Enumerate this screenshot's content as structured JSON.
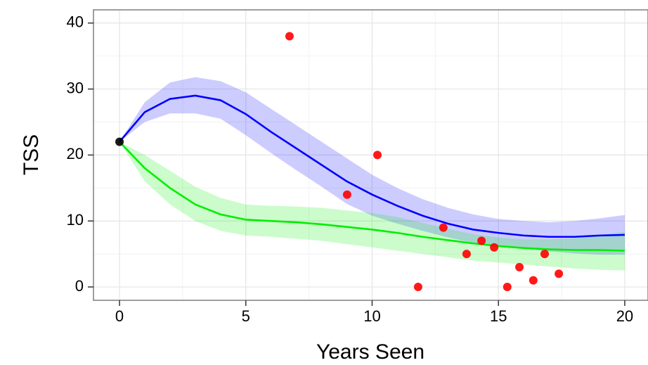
{
  "chart_data": {
    "type": "line",
    "xlabel": "Years Seen",
    "ylabel": "TSS",
    "xlim": [
      -1.03,
      20.92
    ],
    "ylim": [
      -2.02,
      42.0
    ],
    "xticks": [
      0,
      5,
      10,
      15,
      20
    ],
    "yticks": [
      0,
      10,
      20,
      30,
      40
    ],
    "minor_xticks": [
      2.5,
      7.5,
      12.5,
      17.5
    ],
    "minor_yticks": [
      5,
      15,
      25,
      35
    ],
    "grid": true,
    "x": [
      0,
      1,
      2,
      3,
      4,
      5,
      6,
      7,
      8,
      9,
      10,
      11,
      12,
      13,
      14,
      15,
      16,
      17,
      18,
      19,
      20
    ],
    "series": [
      {
        "color": "#0000ff",
        "values": [
          22,
          26.5,
          28.5,
          29,
          28.3,
          26.2,
          23.5,
          21,
          18.5,
          16,
          14,
          12.3,
          10.8,
          9.6,
          8.7,
          8.2,
          7.8,
          7.6,
          7.6,
          7.8,
          7.9
        ],
        "upper": [
          22,
          28,
          31,
          31.8,
          31.2,
          29.5,
          27,
          24.5,
          22,
          19.5,
          17,
          15,
          13.3,
          12,
          11,
          10.3,
          10,
          9.8,
          10,
          10.4,
          10.9
        ],
        "lower": [
          22,
          25,
          26.3,
          26.3,
          25.5,
          23,
          20.3,
          17.7,
          15.2,
          12.6,
          10.8,
          9.6,
          8.5,
          7.5,
          6.7,
          6.2,
          5.8,
          5.4,
          5.1,
          4.9,
          4.9
        ]
      },
      {
        "color": "#00ee00",
        "values": [
          22,
          18,
          15,
          12.5,
          11,
          10.2,
          10,
          9.8,
          9.5,
          9.1,
          8.7,
          8.2,
          7.6,
          7.1,
          6.6,
          6.2,
          5.9,
          5.7,
          5.6,
          5.6,
          5.5
        ],
        "upper": [
          22,
          20,
          17.6,
          15.2,
          13.5,
          12.5,
          12.3,
          12.2,
          12,
          11.6,
          11.2,
          10.6,
          9.7,
          8.8,
          8,
          7.5,
          7.2,
          7.2,
          7.4,
          7.8,
          8.4
        ],
        "lower": [
          22,
          16,
          12.5,
          10,
          8.5,
          7.8,
          7.6,
          7.3,
          7,
          6.5,
          6,
          5.5,
          5,
          4.5,
          4,
          3.7,
          3.4,
          3.1,
          2.8,
          2.6,
          2.5
        ]
      }
    ],
    "points": [
      {
        "color": "#ff0000",
        "x": [
          6.73,
          9.01,
          10.21,
          11.82,
          12.82,
          13.74,
          14.33,
          14.83,
          15.35,
          15.83,
          16.38,
          16.83,
          17.39
        ],
        "values": [
          38,
          14,
          20,
          0,
          9,
          5,
          7,
          6,
          0,
          3,
          1,
          5,
          2
        ]
      },
      {
        "color": "#000000",
        "x": [
          0
        ],
        "values": [
          22
        ]
      }
    ]
  }
}
